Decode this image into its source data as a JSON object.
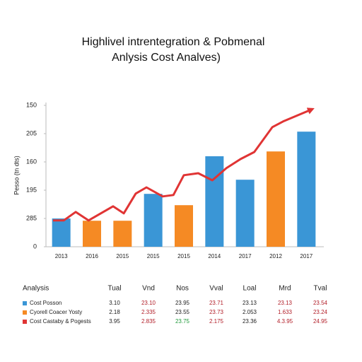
{
  "chart_data": {
    "type": "bar",
    "title": [
      "Highlivel intrentegration & Pobmenal",
      "Anlysis Cost Analves)"
    ],
    "y_label": "Pesso (tn dts)",
    "categories": [
      "2013",
      "2016",
      "2015",
      "2015",
      "2015",
      "2014",
      "2017",
      "2012",
      "2017"
    ],
    "values": [
      1.0,
      0.92,
      0.92,
      1.87,
      1.47,
      3.2,
      2.37,
      3.37,
      4.07
    ],
    "colors": [
      "#3a96d6",
      "#f58a24",
      "#f58a24",
      "#3a96d6",
      "#f58a24",
      "#3a96d6",
      "#3a96d6",
      "#f58a24",
      "#3a96d6"
    ],
    "ylim": [
      0,
      5
    ],
    "yticks": [
      {
        "value": 0,
        "label": "0"
      },
      {
        "value": 1,
        "label": "285"
      },
      {
        "value": 2,
        "label": "195"
      },
      {
        "value": 3,
        "label": "160"
      },
      {
        "value": 4,
        "label": "205"
      },
      {
        "value": 5,
        "label": "150"
      }
    ],
    "grid": false,
    "trend": {
      "color": "#e03434",
      "x": [
        -0.27,
        0.08,
        0.47,
        0.89,
        1.69,
        2.04,
        2.43,
        2.78,
        3.31,
        3.66,
        4.0,
        4.47,
        4.93,
        5.39,
        5.85,
        6.3,
        6.89,
        7.24,
        8.16
      ],
      "values": [
        0.93,
        0.93,
        1.23,
        0.93,
        1.43,
        1.18,
        1.88,
        2.1,
        1.78,
        1.83,
        2.53,
        2.6,
        2.35,
        2.78,
        3.1,
        3.35,
        4.23,
        4.43,
        4.85
      ]
    }
  },
  "table": {
    "header": [
      "Analysis",
      "Tual",
      "Vnd",
      "Nos",
      "Vval",
      "Loal",
      "Mrd",
      "Tval"
    ],
    "rows": [
      {
        "color": "#3a96d6",
        "cells": [
          "Cost Posson",
          "3.10",
          "23.10",
          "23.95",
          "23.71",
          "23.13",
          "23.13",
          "23.54"
        ]
      },
      {
        "color": "#f58a24",
        "cells": [
          "Cyorell Coacer Yosty",
          "2.18",
          "2.335",
          "23.55",
          "23.73",
          "2.053",
          "1.633",
          "23.24"
        ]
      },
      {
        "color": "#e03434",
        "cells": [
          "Cost Castaby & Pogests",
          "3.95",
          "2.835",
          "23.75",
          "2.175",
          "23.36",
          "4.3.95",
          "24.95"
        ]
      }
    ]
  }
}
